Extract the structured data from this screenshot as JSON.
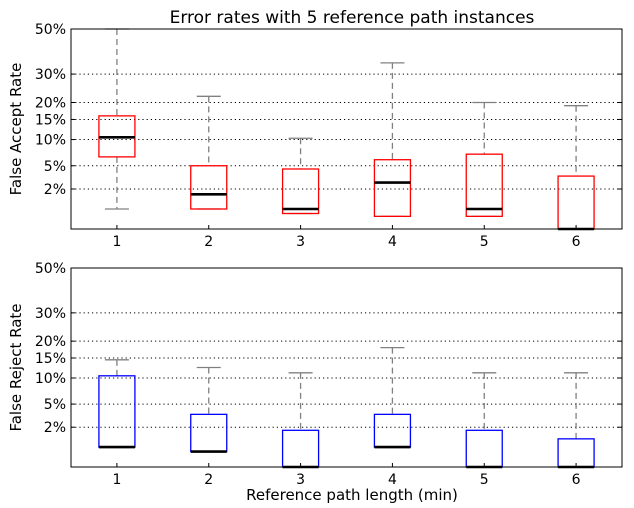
{
  "title": "Error rates with 5 reference path instances",
  "xlabel": "Reference path length (min)",
  "chart_data": [
    {
      "type": "box",
      "ylabel": "False Accept Rate",
      "ylim": [
        0,
        50
      ],
      "yticks": [
        2,
        5,
        10,
        15,
        20,
        30,
        50
      ],
      "ytick_labels": [
        "2%",
        "5%",
        "10%",
        "15%",
        "20%",
        "30%",
        "50%"
      ],
      "grid": "horizontal-dotted",
      "box_color": "#ff0000",
      "categories": [
        "1",
        "2",
        "3",
        "4",
        "5",
        "6"
      ],
      "boxes": [
        {
          "x": "1",
          "whisker_low": 0.5,
          "q1": 6.5,
          "median": 10.5,
          "q3": 16,
          "whisker_high": 50
        },
        {
          "x": "2",
          "whisker_low": 0.5,
          "q1": 0.5,
          "median": 1.5,
          "q3": 5,
          "whisker_high": 22
        },
        {
          "x": "3",
          "whisker_low": 0.3,
          "q1": 0.3,
          "median": 0.5,
          "q3": 4.5,
          "whisker_high": 10.3
        },
        {
          "x": "4",
          "whisker_low": 0.2,
          "q1": 0.2,
          "median": 2.7,
          "q3": 6,
          "whisker_high": 34.5
        },
        {
          "x": "5",
          "whisker_low": 0.2,
          "q1": 0.2,
          "median": 0.5,
          "q3": 7,
          "whisker_high": 20
        },
        {
          "x": "6",
          "whisker_low": 0.0,
          "q1": 0.0,
          "median": 0.0,
          "q3": 3.5,
          "whisker_high": 19
        }
      ]
    },
    {
      "type": "box",
      "ylabel": "False Reject Rate",
      "ylim": [
        0,
        50
      ],
      "yticks": [
        2,
        5,
        10,
        15,
        20,
        30,
        50
      ],
      "ytick_labels": [
        "2%",
        "5%",
        "10%",
        "15%",
        "20%",
        "30%",
        "50%"
      ],
      "grid": "horizontal-dotted",
      "box_color": "#0000ff",
      "categories": [
        "1",
        "2",
        "3",
        "4",
        "5",
        "6"
      ],
      "boxes": [
        {
          "x": "1",
          "whisker_low": 0.5,
          "q1": 0.5,
          "median": 0.5,
          "q3": 10.5,
          "whisker_high": 14.5
        },
        {
          "x": "2",
          "whisker_low": 0.3,
          "q1": 0.3,
          "median": 0.3,
          "q3": 3.5,
          "whisker_high": 12.5
        },
        {
          "x": "3",
          "whisker_low": 0.0,
          "q1": 0.0,
          "median": 0.0,
          "q3": 1.7,
          "whisker_high": 11.2
        },
        {
          "x": "4",
          "whisker_low": 0.5,
          "q1": 0.5,
          "median": 0.5,
          "q3": 3.5,
          "whisker_high": 18
        },
        {
          "x": "5",
          "whisker_low": 0.0,
          "q1": 0.0,
          "median": 0.0,
          "q3": 1.7,
          "whisker_high": 11.2
        },
        {
          "x": "6",
          "whisker_low": 0.0,
          "q1": 0.0,
          "median": 0.0,
          "q3": 1.0,
          "whisker_high": 11.2
        }
      ]
    }
  ]
}
